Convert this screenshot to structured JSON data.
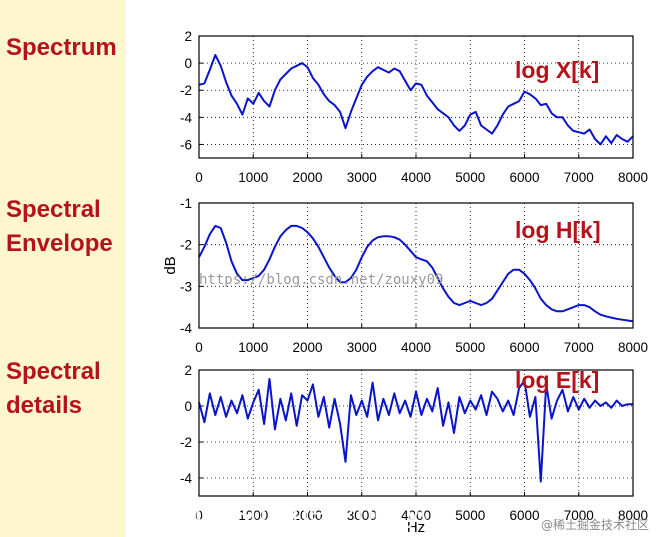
{
  "row_labels": {
    "spectrum": "Spectrum",
    "envelope_line1": "Spectral",
    "envelope_line2": "Envelope",
    "details_line1": "Spectral",
    "details_line2": "details"
  },
  "colors": {
    "left_panel_bg": "#fdf6cf",
    "label_red": "#b5121b",
    "line_blue": "#0a14c8"
  },
  "chart_data": [
    {
      "type": "line",
      "label": "log X[k]",
      "xlim": [
        0,
        8000
      ],
      "ylim": [
        -7,
        2
      ],
      "xticks": [
        0,
        1000,
        2000,
        3000,
        4000,
        5000,
        6000,
        7000,
        8000
      ],
      "yticks": [
        2,
        0,
        -2,
        -4,
        -6
      ],
      "ylabel": "",
      "xlabel": "",
      "series": [
        {
          "x": [
            0,
            100,
            200,
            300,
            400,
            500,
            600,
            700,
            800,
            900,
            1000,
            1100,
            1200,
            1300,
            1400,
            1500,
            1600,
            1700,
            1800,
            1900,
            2000,
            2100,
            2200,
            2300,
            2400,
            2500,
            2600,
            2700,
            2800,
            2900,
            3000,
            3100,
            3200,
            3300,
            3400,
            3500,
            3600,
            3700,
            3800,
            3900,
            4000,
            4100,
            4200,
            4300,
            4400,
            4500,
            4600,
            4700,
            4800,
            4900,
            5000,
            5100,
            5200,
            5300,
            5400,
            5500,
            5600,
            5700,
            5800,
            5900,
            6000,
            6100,
            6200,
            6300,
            6400,
            6500,
            6600,
            6700,
            6800,
            6900,
            7000,
            7100,
            7200,
            7300,
            7400,
            7500,
            7600,
            7700,
            7800,
            7900,
            8000
          ],
          "values": [
            -1.6,
            -1.5,
            -0.5,
            0.6,
            -0.2,
            -1.4,
            -2.4,
            -3.0,
            -3.8,
            -2.6,
            -3.0,
            -2.2,
            -2.8,
            -3.2,
            -2.0,
            -1.2,
            -0.8,
            -0.4,
            -0.2,
            0.0,
            -0.3,
            -1.1,
            -1.6,
            -2.3,
            -2.8,
            -3.1,
            -3.6,
            -4.8,
            -3.6,
            -2.6,
            -1.6,
            -1.0,
            -0.6,
            -0.3,
            -0.5,
            -0.7,
            -0.4,
            -0.6,
            -1.3,
            -2.0,
            -1.5,
            -1.6,
            -2.4,
            -2.9,
            -3.4,
            -3.7,
            -4.0,
            -4.6,
            -5.0,
            -4.6,
            -3.8,
            -3.6,
            -4.6,
            -4.9,
            -5.2,
            -4.6,
            -3.8,
            -3.2,
            -3.0,
            -2.8,
            -2.1,
            -2.3,
            -2.6,
            -3.1,
            -3.0,
            -3.7,
            -4.0,
            -4.0,
            -4.6,
            -5.0,
            -5.1,
            -5.2,
            -4.9,
            -5.6,
            -6.0,
            -5.4,
            -5.9,
            -5.3,
            -5.6,
            -5.8,
            -5.4
          ]
        }
      ]
    },
    {
      "type": "line",
      "label": "log H[k]",
      "xlim": [
        0,
        8000
      ],
      "ylim": [
        -4,
        -1
      ],
      "xticks": [
        0,
        1000,
        2000,
        3000,
        4000,
        5000,
        6000,
        7000,
        8000
      ],
      "yticks": [
        -1,
        -2,
        -3,
        -4
      ],
      "ylabel": "dB",
      "xlabel": "",
      "series": [
        {
          "x": [
            0,
            100,
            200,
            300,
            400,
            500,
            600,
            700,
            800,
            900,
            1000,
            1100,
            1200,
            1300,
            1400,
            1500,
            1600,
            1700,
            1800,
            1900,
            2000,
            2100,
            2200,
            2300,
            2400,
            2500,
            2600,
            2700,
            2800,
            2900,
            3000,
            3100,
            3200,
            3300,
            3400,
            3500,
            3600,
            3700,
            3800,
            3900,
            4000,
            4100,
            4200,
            4300,
            4400,
            4500,
            4600,
            4700,
            4800,
            4900,
            5000,
            5100,
            5200,
            5300,
            5400,
            5500,
            5600,
            5700,
            5800,
            5900,
            6000,
            6100,
            6200,
            6300,
            6400,
            6500,
            6600,
            6700,
            6800,
            6900,
            7000,
            7100,
            7200,
            7300,
            7400,
            7500,
            7600,
            7700,
            7800,
            7900,
            8000
          ],
          "values": [
            -2.3,
            -2.05,
            -1.75,
            -1.55,
            -1.6,
            -1.95,
            -2.4,
            -2.7,
            -2.85,
            -2.85,
            -2.8,
            -2.75,
            -2.6,
            -2.35,
            -2.05,
            -1.8,
            -1.65,
            -1.55,
            -1.55,
            -1.6,
            -1.7,
            -1.85,
            -2.05,
            -2.3,
            -2.55,
            -2.75,
            -2.9,
            -2.9,
            -2.8,
            -2.6,
            -2.3,
            -2.05,
            -1.9,
            -1.82,
            -1.8,
            -1.8,
            -1.82,
            -1.88,
            -2.0,
            -2.15,
            -2.3,
            -2.35,
            -2.4,
            -2.55,
            -2.8,
            -3.05,
            -3.25,
            -3.4,
            -3.45,
            -3.4,
            -3.35,
            -3.4,
            -3.45,
            -3.4,
            -3.3,
            -3.1,
            -2.9,
            -2.7,
            -2.6,
            -2.6,
            -2.7,
            -2.85,
            -3.05,
            -3.3,
            -3.45,
            -3.55,
            -3.6,
            -3.6,
            -3.55,
            -3.5,
            -3.45,
            -3.45,
            -3.5,
            -3.6,
            -3.68,
            -3.72,
            -3.75,
            -3.78,
            -3.8,
            -3.82,
            -3.84
          ]
        }
      ]
    },
    {
      "type": "line",
      "label": "log E[k]",
      "xlim": [
        0,
        8000
      ],
      "ylim": [
        -5,
        2
      ],
      "xticks": [
        0,
        1000,
        2000,
        3000,
        4000,
        5000,
        6000,
        7000,
        8000
      ],
      "yticks": [
        2,
        0,
        -2,
        -4
      ],
      "ylabel": "",
      "xlabel": "Hz",
      "series": [
        {
          "x": [
            0,
            100,
            200,
            300,
            400,
            500,
            600,
            700,
            800,
            900,
            1000,
            1100,
            1200,
            1300,
            1400,
            1500,
            1600,
            1700,
            1800,
            1900,
            2000,
            2100,
            2200,
            2300,
            2400,
            2500,
            2600,
            2700,
            2800,
            2900,
            3000,
            3100,
            3200,
            3300,
            3400,
            3500,
            3600,
            3700,
            3800,
            3900,
            4000,
            4100,
            4200,
            4300,
            4400,
            4500,
            4600,
            4700,
            4800,
            4900,
            5000,
            5100,
            5200,
            5300,
            5400,
            5500,
            5600,
            5700,
            5800,
            5900,
            6000,
            6100,
            6200,
            6300,
            6400,
            6500,
            6600,
            6700,
            6800,
            6900,
            7000,
            7100,
            7200,
            7300,
            7400,
            7500,
            7600,
            7700,
            7800,
            7900,
            8000
          ],
          "values": [
            0.2,
            -0.9,
            0.7,
            -0.5,
            0.5,
            -0.6,
            0.3,
            -0.4,
            0.6,
            -0.7,
            0.2,
            0.9,
            -1.0,
            1.5,
            -1.3,
            0.4,
            -0.8,
            0.7,
            -1.1,
            0.6,
            0.3,
            1.2,
            -0.6,
            0.5,
            -1.2,
            0.4,
            -1.0,
            -3.1,
            0.6,
            -0.5,
            0.3,
            -0.6,
            1.3,
            -0.8,
            0.4,
            -0.5,
            0.7,
            -0.4,
            0.3,
            -0.6,
            0.8,
            -0.5,
            0.4,
            -0.3,
            1.0,
            -1.1,
            0.2,
            -1.5,
            0.5,
            -0.4,
            0.3,
            -0.2,
            0.6,
            -0.5,
            0.8,
            0.4,
            -0.3,
            0.3,
            -0.5,
            1.0,
            1.4,
            -0.6,
            0.5,
            -4.2,
            1.2,
            -0.7,
            0.3,
            0.9,
            -0.3,
            0.5,
            -0.2,
            0.4,
            -0.1,
            0.3,
            0.0,
            0.2,
            -0.1,
            0.3,
            0.0,
            0.1,
            0.1
          ]
        }
      ]
    }
  ],
  "watermark": {
    "url": "https://blog.csdn.net/zouxy09",
    "bottom": "https://blog.csdn.net/zouxy09",
    "credit": "@稀土掘金技术社区"
  }
}
